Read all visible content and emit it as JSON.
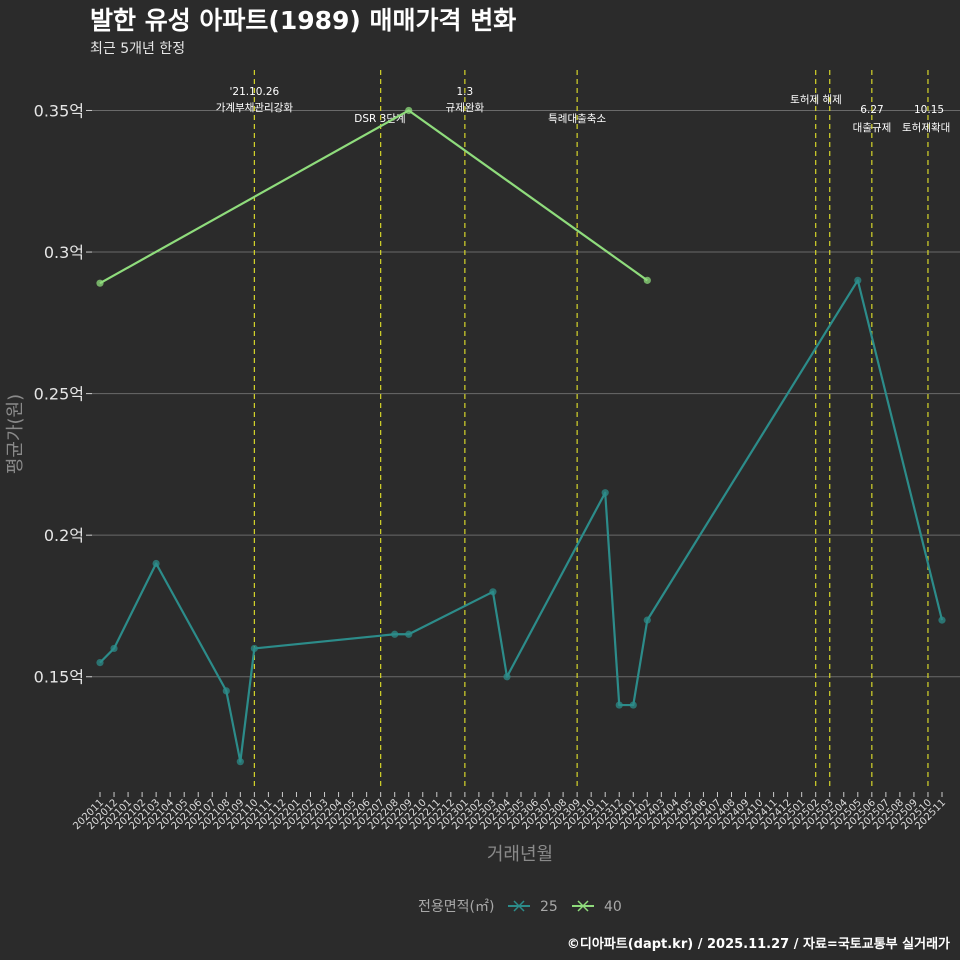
{
  "title": "발한 유성 아파트(1989) 매매가격 변화",
  "subtitle": "최근 5개년 한정",
  "caption": "©디아파트(dapt.kr) / 2025.11.27 / 자료=국토교통부 실거래가",
  "chart_data": {
    "type": "line",
    "xlabel": "거래년월",
    "ylabel": "평균가(원)",
    "ylim": [
      0.11,
      0.365
    ],
    "yticks": [
      0.15,
      0.2,
      0.25,
      0.3,
      0.35
    ],
    "ytick_labels": [
      "0.15억",
      "0.2억",
      "0.25억",
      "0.3억",
      "0.35억"
    ],
    "grid": true,
    "categories": [
      "202011",
      "202012",
      "202101",
      "202102",
      "202103",
      "202104",
      "202105",
      "202106",
      "202107",
      "202108",
      "202109",
      "202110",
      "202111",
      "202112",
      "202201",
      "202202",
      "202203",
      "202204",
      "202205",
      "202206",
      "202207",
      "202208",
      "202209",
      "202210",
      "202211",
      "202212",
      "202301",
      "202302",
      "202303",
      "202304",
      "202305",
      "202306",
      "202307",
      "202308",
      "202309",
      "202310",
      "202311",
      "202312",
      "202401",
      "202402",
      "202403",
      "202404",
      "202405",
      "202406",
      "202407",
      "202408",
      "202409",
      "202410",
      "202411",
      "202412",
      "202501",
      "202502",
      "202503",
      "202504",
      "202505",
      "202506",
      "202507",
      "202508",
      "202509",
      "202510",
      "202511"
    ],
    "legend_title": "전용면적(㎡)",
    "legend_position": "bottom",
    "series": [
      {
        "name": "25",
        "color": "#2c8c8a",
        "points": [
          [
            "202011",
            0.155
          ],
          [
            "202012",
            0.16
          ],
          [
            "202103",
            0.19
          ],
          [
            "202108",
            0.145
          ],
          [
            "202109",
            0.12
          ],
          [
            "202110",
            0.16
          ],
          [
            "202208",
            0.165
          ],
          [
            "202209",
            0.165
          ],
          [
            "202303",
            0.18
          ],
          [
            "202304",
            0.15
          ],
          [
            "202311",
            0.215
          ],
          [
            "202312",
            0.14
          ],
          [
            "202401",
            0.14
          ],
          [
            "202402",
            0.17
          ],
          [
            "202505",
            0.29
          ],
          [
            "202511",
            0.17
          ]
        ]
      },
      {
        "name": "40",
        "color": "#8fdc7c",
        "points": [
          [
            "202011",
            0.289
          ],
          [
            "202209",
            0.35
          ],
          [
            "202402",
            0.29
          ]
        ]
      }
    ],
    "events": [
      {
        "at": "202110",
        "lines": [
          "'21.10.26",
          "가계부채관리강화"
        ],
        "level": "top"
      },
      {
        "at": "202207",
        "lines": [
          "DSR 3단계"
        ],
        "level": "low"
      },
      {
        "at": "202301",
        "lines": [
          "1.3",
          "규제완화"
        ],
        "level": "top"
      },
      {
        "at": "202309",
        "lines": [
          "특례대출축소"
        ],
        "level": "low"
      },
      {
        "at": "202502",
        "lines": [
          "토허제 해제"
        ],
        "level": "mid"
      },
      {
        "at": "202503",
        "lines": [],
        "level": "mid"
      },
      {
        "at": "202506",
        "lines": [
          "6.27",
          "대출규제"
        ],
        "level": "bottom"
      },
      {
        "at": "202510",
        "lines": [
          "10.15",
          "토허제확대"
        ],
        "level": "bottom"
      }
    ]
  }
}
